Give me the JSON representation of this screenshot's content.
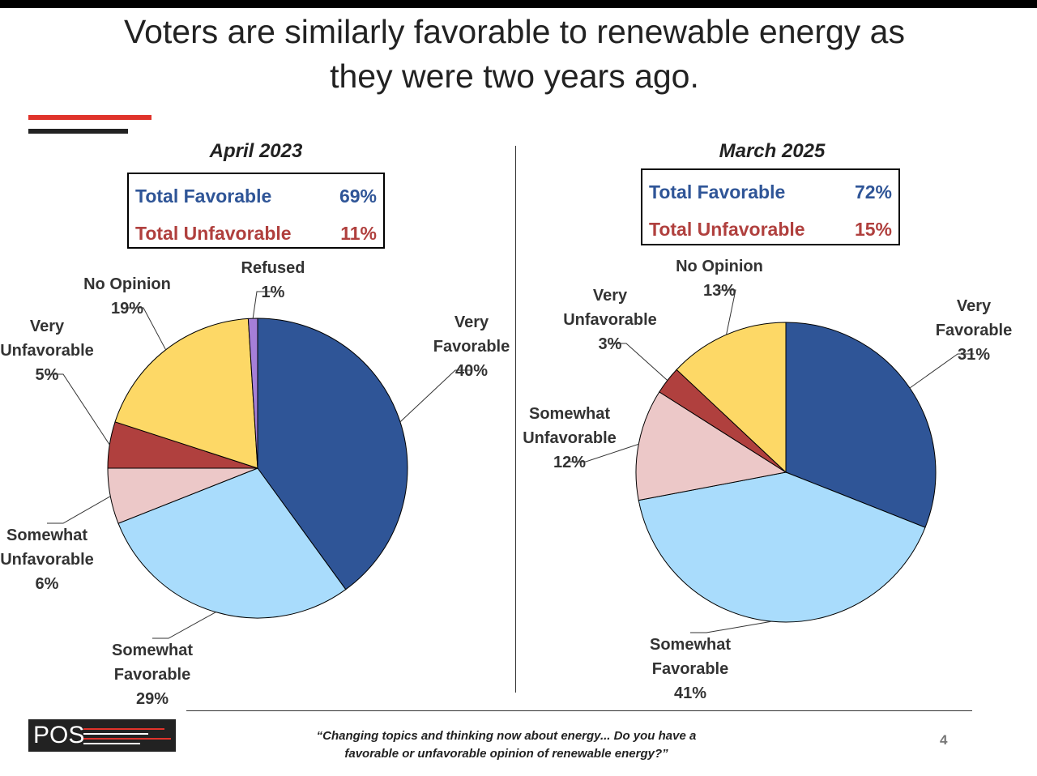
{
  "title": "Voters are similarly favorable to renewable energy as they were two years ago.",
  "logo": "POS",
  "footer": "“Changing topics and thinking now about energy... Do you have a favorable or unfavorable opinion of renewable energy?”",
  "page_number": "4",
  "chart_data": [
    {
      "type": "pie",
      "title": "April 2023",
      "summary": {
        "labels": [
          "Total Favorable",
          "Total Unfavorable"
        ],
        "values": [
          69,
          11
        ],
        "value_labels": [
          "69%",
          "11%"
        ],
        "colors": [
          "#2f5597",
          "#b0403e"
        ]
      },
      "categories": [
        "Very Favorable",
        "Somewhat Favorable",
        "Somewhat Unfavorable",
        "Very Unfavorable",
        "No Opinion",
        "Refused"
      ],
      "values": [
        40,
        29,
        6,
        5,
        19,
        1
      ],
      "value_labels": [
        "40%",
        "29%",
        "6%",
        "5%",
        "19%",
        "1%"
      ],
      "colors": [
        "#2f5597",
        "#a9dcfc",
        "#ecc8c8",
        "#b0403e",
        "#fdd866",
        "#a57fd8"
      ]
    },
    {
      "type": "pie",
      "title": "March 2025",
      "summary": {
        "labels": [
          "Total Favorable",
          "Total Unfavorable"
        ],
        "values": [
          72,
          15
        ],
        "value_labels": [
          "72%",
          "15%"
        ],
        "colors": [
          "#2f5597",
          "#b0403e"
        ]
      },
      "categories": [
        "Very Favorable",
        "Somewhat Favorable",
        "Somewhat Unfavorable",
        "Very Unfavorable",
        "No Opinion"
      ],
      "values": [
        31,
        41,
        12,
        3,
        13
      ],
      "value_labels": [
        "31%",
        "41%",
        "12%",
        "3%",
        "13%"
      ],
      "colors": [
        "#2f5597",
        "#a9dcfc",
        "#ecc8c8",
        "#b0403e",
        "#fdd866"
      ]
    }
  ]
}
